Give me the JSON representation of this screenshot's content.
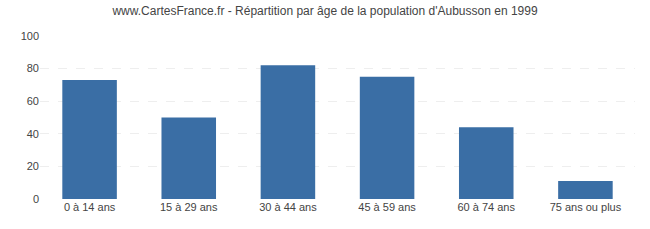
{
  "chart_data": {
    "type": "bar",
    "title": "www.CartesFrance.fr - Répartition par âge de la population d'Aubusson en 1999",
    "categories": [
      "0 à 14 ans",
      "15 à 29 ans",
      "30 à 44 ans",
      "45 à 59 ans",
      "60 à 74 ans",
      "75 ans ou plus"
    ],
    "values": [
      73,
      50,
      82,
      75,
      44,
      11
    ],
    "color": "#3a6ea5",
    "ylim": [
      0,
      100
    ],
    "yticks": [
      0,
      20,
      40,
      60,
      80,
      100
    ],
    "grid": true
  }
}
